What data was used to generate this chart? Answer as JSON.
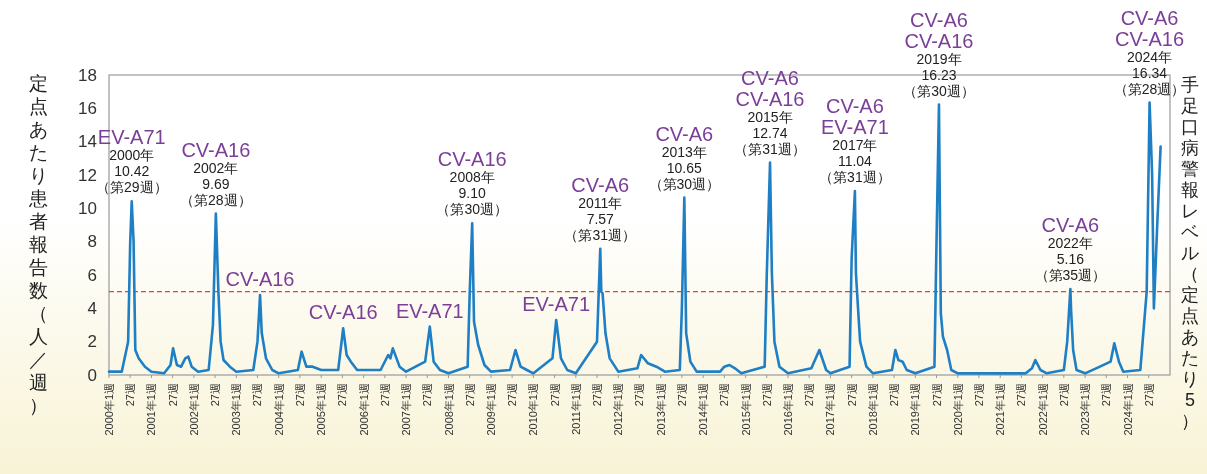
{
  "chart_data": {
    "type": "line",
    "ylabel": "定点あたり患者報告数（人／週）",
    "xlim": [
      "2000-01-01",
      "2025-01-01"
    ],
    "ylim": [
      0,
      18
    ],
    "yticks": [
      0,
      2,
      4,
      6,
      8,
      10,
      12,
      14,
      16,
      18
    ],
    "grid": false,
    "xticks": [
      {
        "value": "2000-01-01",
        "label": "2000年1週"
      },
      {
        "value": "2000-07-01",
        "label": "27週"
      },
      {
        "value": "2001-01-01",
        "label": "2001年1週"
      },
      {
        "value": "2001-07-02",
        "label": "27週"
      },
      {
        "value": "2002-01-01",
        "label": "2002年1週"
      },
      {
        "value": "2002-07-02",
        "label": "27週"
      },
      {
        "value": "2003-01-01",
        "label": "2003年1週"
      },
      {
        "value": "2003-07-02",
        "label": "27週"
      },
      {
        "value": "2004-01-01",
        "label": "2004年1週"
      },
      {
        "value": "2004-07-01",
        "label": "27週"
      },
      {
        "value": "2005-01-01",
        "label": "2005年1週"
      },
      {
        "value": "2005-07-02",
        "label": "27週"
      },
      {
        "value": "2006-01-01",
        "label": "2006年1週"
      },
      {
        "value": "2006-07-02",
        "label": "27週"
      },
      {
        "value": "2007-01-01",
        "label": "2007年1週"
      },
      {
        "value": "2007-07-02",
        "label": "27週"
      },
      {
        "value": "2008-01-01",
        "label": "2008年1週"
      },
      {
        "value": "2008-07-01",
        "label": "27週"
      },
      {
        "value": "2009-01-01",
        "label": "2009年1週"
      },
      {
        "value": "2009-07-02",
        "label": "27週"
      },
      {
        "value": "2010-01-01",
        "label": "2010年1週"
      },
      {
        "value": "2010-07-02",
        "label": "27週"
      },
      {
        "value": "2011-01-01",
        "label": "2011年1週"
      },
      {
        "value": "2011-07-02",
        "label": "27週"
      },
      {
        "value": "2012-01-01",
        "label": "2012年1週"
      },
      {
        "value": "2012-07-01",
        "label": "27週"
      },
      {
        "value": "2013-01-01",
        "label": "2013年1週"
      },
      {
        "value": "2013-07-02",
        "label": "27週"
      },
      {
        "value": "2014-01-01",
        "label": "2014年1週"
      },
      {
        "value": "2014-07-02",
        "label": "27週"
      },
      {
        "value": "2015-01-01",
        "label": "2015年1週"
      },
      {
        "value": "2015-07-02",
        "label": "27週"
      },
      {
        "value": "2016-01-01",
        "label": "2016年1週"
      },
      {
        "value": "2016-07-01",
        "label": "27週"
      },
      {
        "value": "2017-01-01",
        "label": "2017年1週"
      },
      {
        "value": "2017-07-02",
        "label": "27週"
      },
      {
        "value": "2018-01-01",
        "label": "2018年1週"
      },
      {
        "value": "2018-07-02",
        "label": "27週"
      },
      {
        "value": "2019-01-01",
        "label": "2019年1週"
      },
      {
        "value": "2019-07-02",
        "label": "27週"
      },
      {
        "value": "2020-01-01",
        "label": "2020年1週"
      },
      {
        "value": "2020-07-01",
        "label": "27週"
      },
      {
        "value": "2021-01-01",
        "label": "2021年1週"
      },
      {
        "value": "2021-07-02",
        "label": "27週"
      },
      {
        "value": "2022-01-01",
        "label": "2022年1週"
      },
      {
        "value": "2022-07-02",
        "label": "27週"
      },
      {
        "value": "2023-01-01",
        "label": "2023年1週"
      },
      {
        "value": "2023-07-02",
        "label": "27週"
      },
      {
        "value": "2024-01-01",
        "label": "2024年1週"
      },
      {
        "value": "2024-07-01",
        "label": "27週"
      }
    ],
    "series": [
      {
        "color": "#1f7fc4",
        "x": [
          "2000-01-01",
          "2000-04-20",
          "2000-06-14",
          "2000-07-02",
          "2000-07-15",
          "2000-07-31",
          "2000-08-15",
          "2000-09-13",
          "2000-11-06",
          "2001-01-01",
          "2001-04-20",
          "2001-06-14",
          "2001-07-06",
          "2001-08-08",
          "2001-09-13",
          "2001-10-19",
          "2001-11-14",
          "2001-12-13",
          "2002-02-06",
          "2002-05-08",
          "2002-06-14",
          "2002-07-09",
          "2002-07-31",
          "2002-08-19",
          "2002-09-13",
          "2002-11-06",
          "2003-01-01",
          "2003-05-27",
          "2003-07-02",
          "2003-07-24",
          "2003-08-08",
          "2003-09-13",
          "2003-11-06",
          "2004-01-01",
          "2004-06-14",
          "2004-07-16",
          "2004-08-26",
          "2004-10-19",
          "2005-01-01",
          "2005-05-27",
          "2005-07-09",
          "2005-08-08",
          "2005-09-13",
          "2005-11-06",
          "2006-05-27",
          "2006-07-31",
          "2006-08-19",
          "2006-09-09",
          "2006-11-06",
          "2007-01-01",
          "2007-06-14",
          "2007-07-24",
          "2007-08-26",
          "2007-10-19",
          "2008-01-01",
          "2008-06-14",
          "2008-07-02",
          "2008-07-23",
          "2008-08-08",
          "2008-09-13",
          "2008-11-06",
          "2009-01-01",
          "2009-06-14",
          "2009-07-31",
          "2009-09-13",
          "2009-11-06",
          "2010-01-01",
          "2010-06-14",
          "2010-07-16",
          "2010-08-26",
          "2010-10-19",
          "2011-01-01",
          "2011-07-02",
          "2011-07-30",
          "2011-08-08",
          "2011-08-19",
          "2011-09-13",
          "2011-10-19",
          "2012-01-01",
          "2012-06-14",
          "2012-07-16",
          "2012-09-13",
          "2012-11-25",
          "2013-02-06",
          "2013-06-14",
          "2013-07-02",
          "2013-07-23",
          "2013-08-08",
          "2013-09-13",
          "2013-11-06",
          "2014-05-27",
          "2014-07-02",
          "2014-08-15",
          "2014-10-01",
          "2014-11-25",
          "2015-06-14",
          "2015-07-02",
          "2015-07-30",
          "2015-08-15",
          "2015-09-06",
          "2015-10-19",
          "2016-01-01",
          "2016-07-20",
          "2016-09-27",
          "2016-11-25",
          "2017-01-01",
          "2017-06-14",
          "2017-07-02",
          "2017-07-30",
          "2017-08-08",
          "2017-08-26",
          "2017-09-13",
          "2017-11-06",
          "2018-01-01",
          "2018-06-14",
          "2018-07-13",
          "2018-08-08",
          "2018-09-13",
          "2018-10-19",
          "2019-01-01",
          "2019-06-14",
          "2019-07-02",
          "2019-07-23",
          "2019-08-08",
          "2019-08-26",
          "2019-10-01",
          "2019-11-06",
          "2020-01-01",
          "2021-08-08",
          "2021-10-01",
          "2021-10-30",
          "2021-12-13",
          "2022-02-06",
          "2022-07-02",
          "2022-07-31",
          "2022-08-27",
          "2022-09-03",
          "2022-09-20",
          "2022-10-19",
          "2023-01-01",
          "2023-05-08",
          "2023-08-08",
          "2023-09-09",
          "2023-10-19",
          "2023-11-25",
          "2024-04-20",
          "2024-06-14",
          "2024-07-09",
          "2024-07-31",
          "2024-08-15",
          "2024-09-13",
          "2024-10-12"
        ],
        "values": [
          0.2,
          0.2,
          2.0,
          8.0,
          10.42,
          8.0,
          1.5,
          1.0,
          0.5,
          0.2,
          0.1,
          0.6,
          1.6,
          0.6,
          0.5,
          1.0,
          1.1,
          0.5,
          0.2,
          0.3,
          3.0,
          9.69,
          5.0,
          2.0,
          0.9,
          0.5,
          0.2,
          0.3,
          2.0,
          4.8,
          2.5,
          1.0,
          0.3,
          0.1,
          0.3,
          1.4,
          0.5,
          0.5,
          0.3,
          0.3,
          2.8,
          1.2,
          0.8,
          0.3,
          0.3,
          1.2,
          1.0,
          1.6,
          0.5,
          0.2,
          0.8,
          2.9,
          0.8,
          0.3,
          0.1,
          0.5,
          5.0,
          9.1,
          3.2,
          1.8,
          0.6,
          0.2,
          0.3,
          1.5,
          0.5,
          0.3,
          0.1,
          1.0,
          3.3,
          1.0,
          0.3,
          0.1,
          2.0,
          7.57,
          5.0,
          4.9,
          2.5,
          1.0,
          0.2,
          0.4,
          1.2,
          0.7,
          0.5,
          0.2,
          0.3,
          4.0,
          10.65,
          2.5,
          0.8,
          0.2,
          0.2,
          0.5,
          0.6,
          0.4,
          0.1,
          0.5,
          6.0,
          12.74,
          6.1,
          2.0,
          0.5,
          0.1,
          0.4,
          1.5,
          0.3,
          0.1,
          0.5,
          7.0,
          11.04,
          6.1,
          4.0,
          2.0,
          0.5,
          0.1,
          0.3,
          1.5,
          0.9,
          0.8,
          0.3,
          0.1,
          0.5,
          8.0,
          16.23,
          3.7,
          2.3,
          1.5,
          0.3,
          0.1,
          0.1,
          0.4,
          0.9,
          0.3,
          0.1,
          0.3,
          2.0,
          5.16,
          3.8,
          1.5,
          0.3,
          0.1,
          0.5,
          0.8,
          1.9,
          0.8,
          0.2,
          0.3,
          5.0,
          16.34,
          12.0,
          4.0,
          9.0,
          13.7
        ]
      }
    ],
    "ref_lines": [
      {
        "axis": "y",
        "value": 5,
        "label": "手足口病警報レベル（定点あたり5）",
        "color": "#e8403a",
        "line_style": "dashed"
      }
    ],
    "annotations": [
      {
        "text": "EV-A71\n2000年\n10.42\n（第29週）",
        "x": "2000-07-15",
        "y": 10.42
      },
      {
        "text": "CV-A16\n2002年\n9.69\n（第28週）",
        "x": "2002-07-09",
        "y": 9.69
      },
      {
        "text": "CV-A16",
        "x": "2003-07-24",
        "y": 4.8
      },
      {
        "text": "CV-A16",
        "x": "2005-07-09",
        "y": 2.8
      },
      {
        "text": "EV-A71",
        "x": "2007-07-24",
        "y": 2.9
      },
      {
        "text": "CV-A16\n2008年\n9.10\n（第30週）",
        "x": "2008-07-23",
        "y": 9.1
      },
      {
        "text": "EV-A71",
        "x": "2010-07-16",
        "y": 3.3
      },
      {
        "text": "CV-A6\n2011年\n7.57\n（第31週）",
        "x": "2011-07-30",
        "y": 7.57
      },
      {
        "text": "CV-A6\n2013年\n10.65\n（第30週）",
        "x": "2013-07-23",
        "y": 10.65
      },
      {
        "text": "CV-A6\nCV-A16\n2015年\n12.74\n（第31週）",
        "x": "2015-07-30",
        "y": 12.74
      },
      {
        "text": "CV-A6\nEV-A71\n2017年\n11.04\n（第31週）",
        "x": "2017-07-30",
        "y": 11.04
      },
      {
        "text": "CV-A6\nCV-A16\n2019年\n16.23\n（第30週）",
        "x": "2019-07-23",
        "y": 16.23
      },
      {
        "text": "CV-A6\n2022年\n5.16\n（第35週）",
        "x": "2022-08-27",
        "y": 5.16
      },
      {
        "text": "CV-A6\nCV-A16\n2024年\n16.34\n（第28週）",
        "x": "2024-07-09",
        "y": 16.34
      }
    ]
  }
}
